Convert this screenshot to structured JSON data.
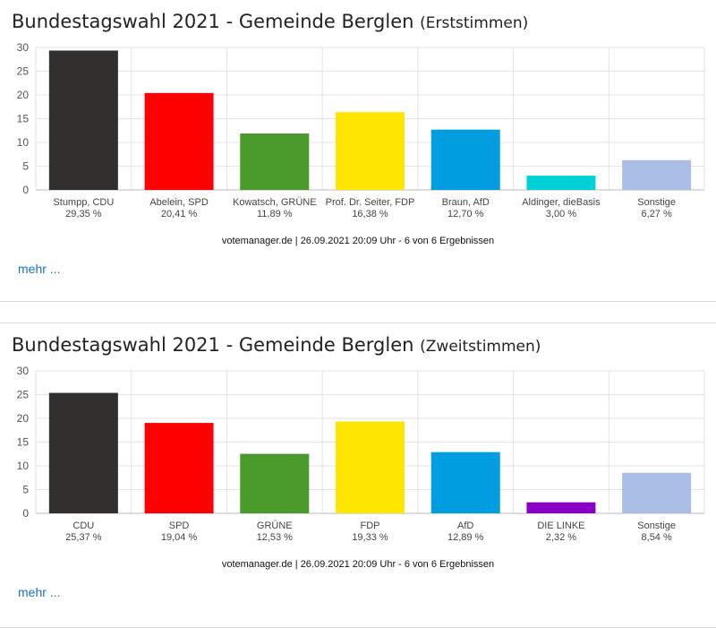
{
  "chart_data": [
    {
      "type": "bar",
      "title": "Bundestagswahl 2021 - Gemeinde Berglen",
      "subtitle": "(Erststimmen)",
      "categories": [
        "Stumpp, CDU",
        "Abelein, SPD",
        "Kowatsch, GRÜNE",
        "Prof. Dr. Seiter, FDP",
        "Braun, AfD",
        "Aldinger, dieBasis",
        "Sonstige"
      ],
      "values": [
        29.35,
        20.41,
        11.89,
        16.38,
        12.7,
        3.0,
        6.27
      ],
      "value_labels": [
        "29,35 %",
        "20,41 %",
        "11,89 %",
        "16,38 %",
        "12,70 %",
        "3,00 %",
        "6,27 %"
      ],
      "colors": [
        "#32302e",
        "#ff0000",
        "#4a9a2c",
        "#ffe600",
        "#009ee0",
        "#00d0d8",
        "#aabde4"
      ],
      "ylim": [
        0,
        30
      ],
      "yticks": [
        "0",
        "5",
        "10",
        "15",
        "20",
        "25",
        "30"
      ],
      "grid": true,
      "source": "votemanager.de | 26.09.2021 20:09 Uhr - 6 von 6 Ergebnissen",
      "more_link": "mehr ..."
    },
    {
      "type": "bar",
      "title": "Bundestagswahl 2021 - Gemeinde Berglen",
      "subtitle": "(Zweitstimmen)",
      "categories": [
        "CDU",
        "SPD",
        "GRÜNE",
        "FDP",
        "AfD",
        "DIE LINKE",
        "Sonstige"
      ],
      "values": [
        25.37,
        19.04,
        12.53,
        19.33,
        12.89,
        2.32,
        8.54
      ],
      "value_labels": [
        "25,37 %",
        "19,04 %",
        "12,53 %",
        "19,33 %",
        "12,89 %",
        "2,32 %",
        "8,54 %"
      ],
      "colors": [
        "#32302e",
        "#ff0000",
        "#4a9a2c",
        "#ffe600",
        "#009ee0",
        "#8b00c9",
        "#aabde4"
      ],
      "ylim": [
        0,
        30
      ],
      "yticks": [
        "0",
        "5",
        "10",
        "15",
        "20",
        "25",
        "30"
      ],
      "grid": true,
      "source": "votemanager.de | 26.09.2021 20:09 Uhr - 6 von 6 Ergebnissen",
      "more_link": "mehr ..."
    }
  ]
}
